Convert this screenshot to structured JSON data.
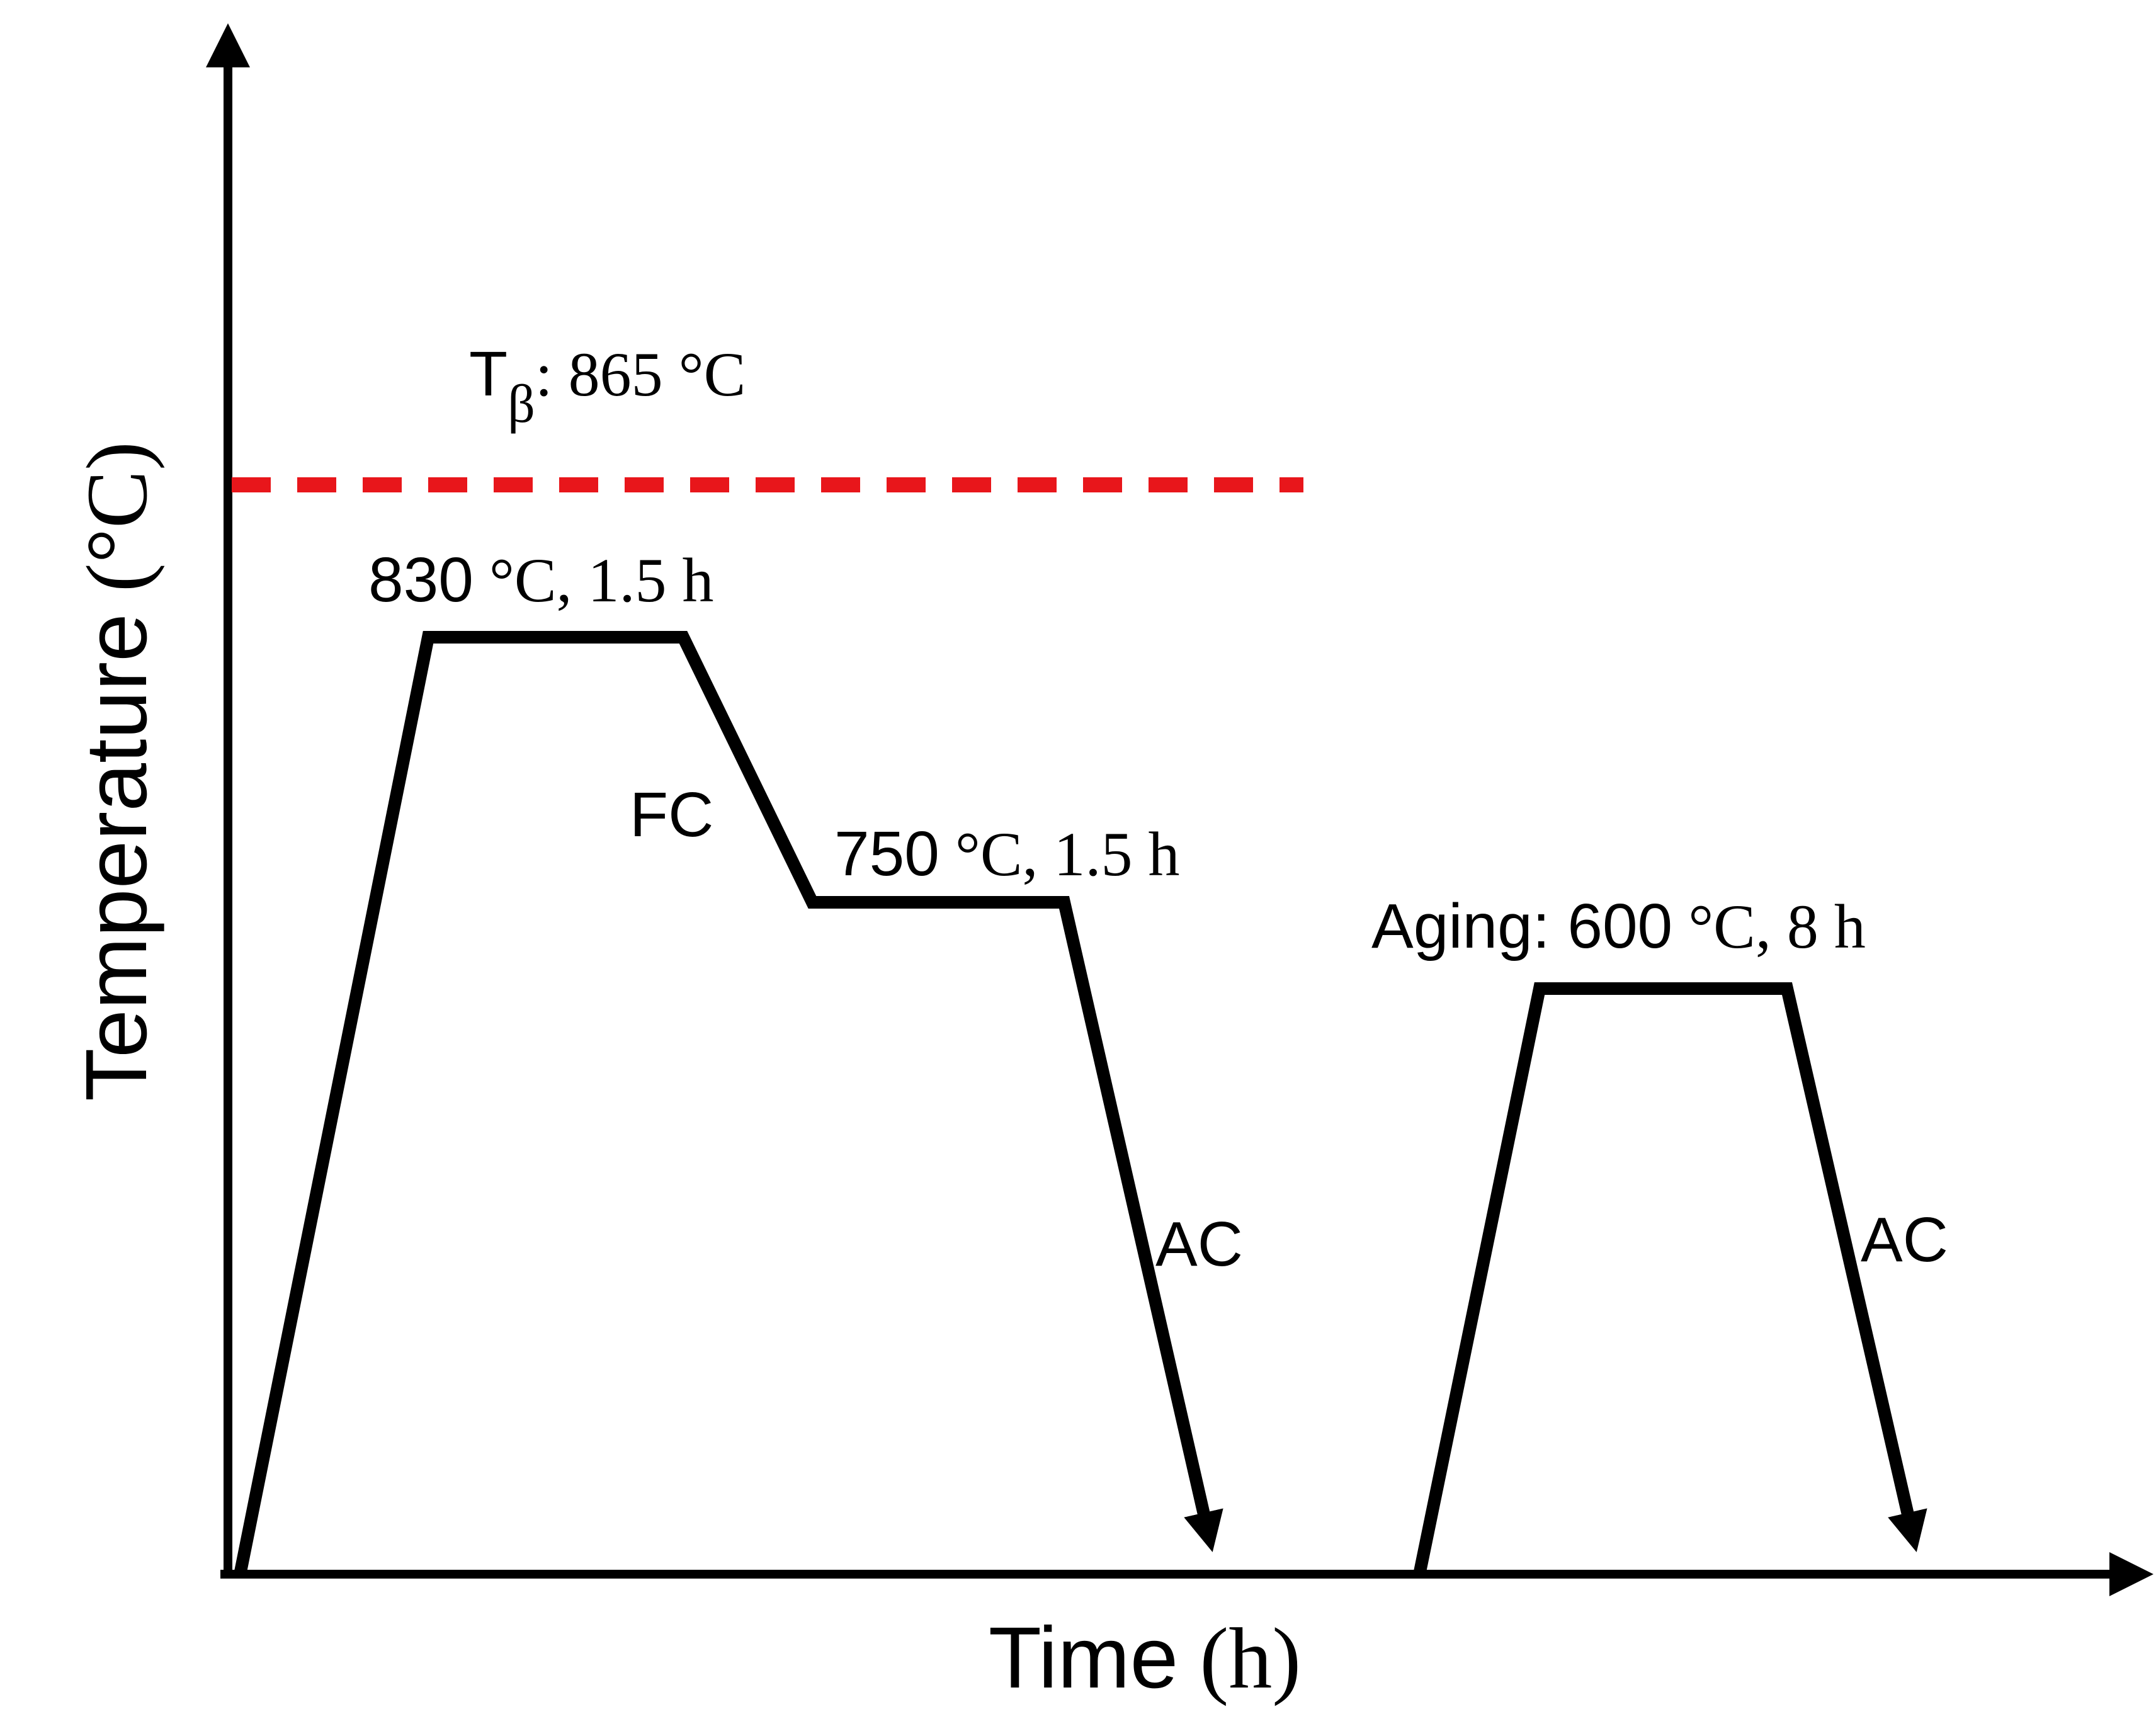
{
  "axes": {
    "x_label_main": "Time",
    "x_label_unit": "(h)",
    "y_label_main": "Temperature",
    "y_label_unit": "(°C)"
  },
  "beta_transus": {
    "label_symbol": "T",
    "label_subscript": "β",
    "label_value": ": 865 °C",
    "temperature": 865,
    "color": "#e8161b"
  },
  "stages": {
    "solution_1": {
      "temp_num": "830",
      "temp_rest": " °C, 1.5 h",
      "temperature": 830,
      "duration_h": 1.5
    },
    "furnace_cooling": {
      "label": "FC"
    },
    "solution_2": {
      "temp_num": "750",
      "temp_rest": " °C, 1.5 h",
      "temperature": 750,
      "duration_h": 1.5
    },
    "air_cooling_1": {
      "label": "AC"
    },
    "aging": {
      "label_prefix": "Aging: 600",
      "label_rest": " °C, 8 h",
      "temperature": 600,
      "duration_h": 8
    },
    "air_cooling_2": {
      "label": "AC"
    }
  },
  "colors": {
    "line": "#000000",
    "transus_line": "#e8161b"
  }
}
